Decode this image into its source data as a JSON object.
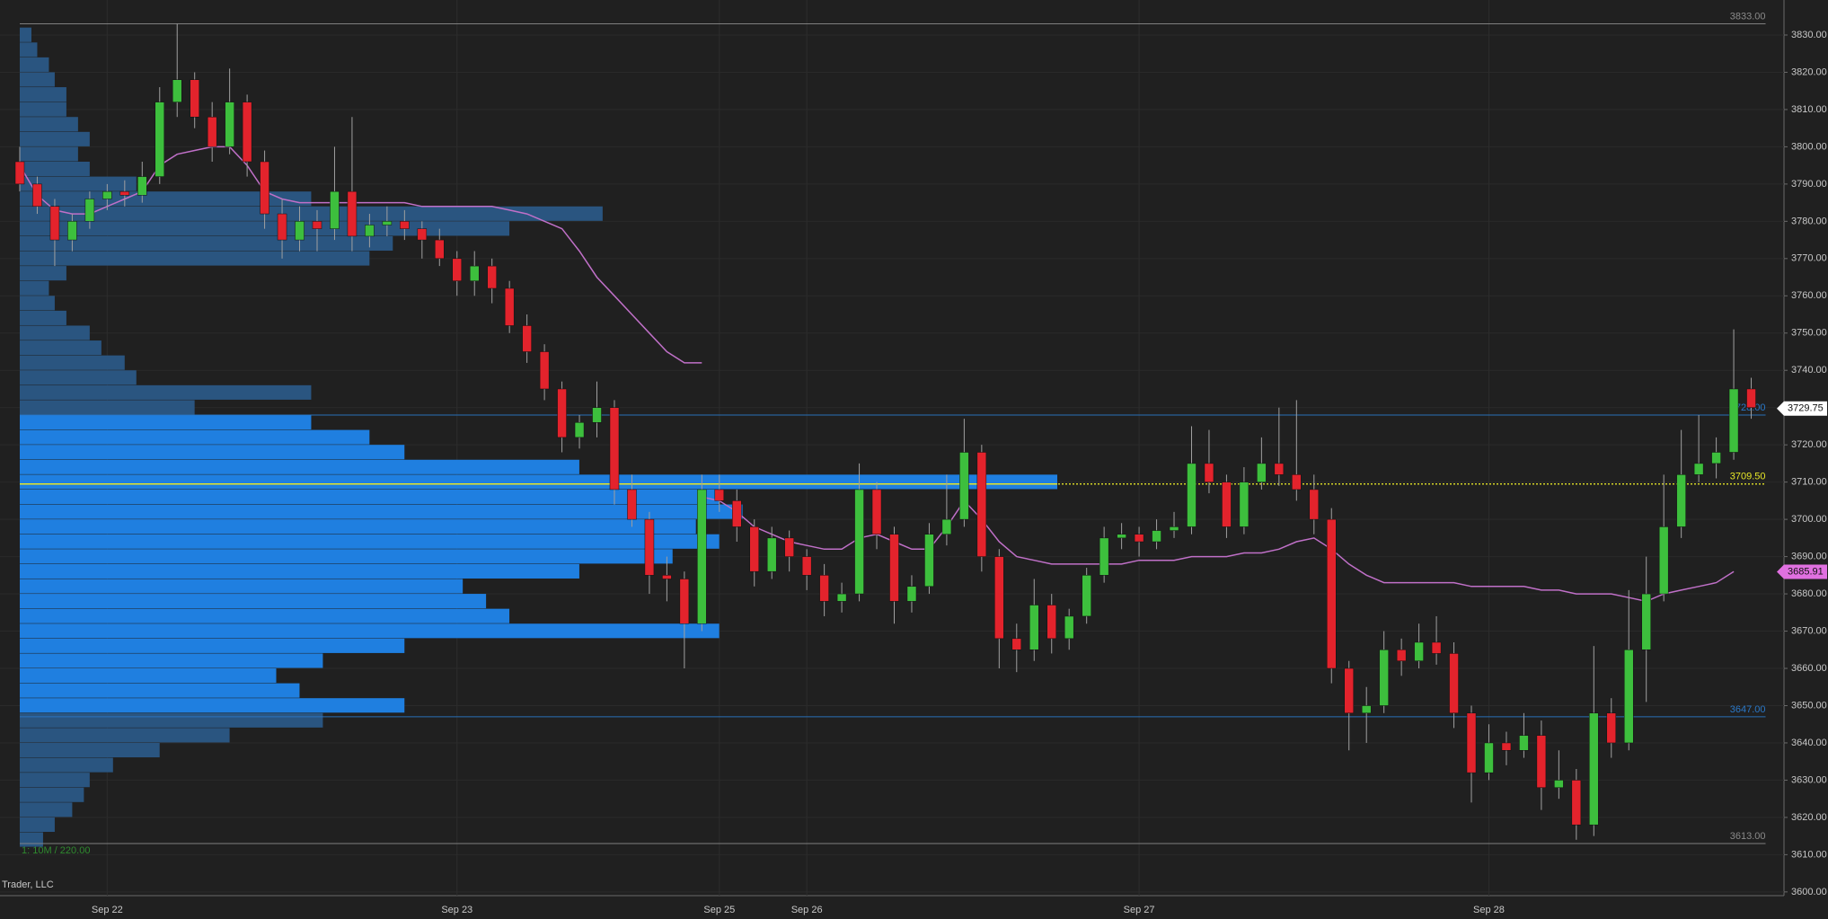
{
  "chart_data": {
    "type": "candlestick",
    "categories": [
      null,
      null,
      null,
      null,
      null,
      "Sep 22",
      null,
      null,
      null,
      null,
      null,
      null,
      null,
      null,
      null,
      null,
      null,
      null,
      null,
      null,
      null,
      null,
      null,
      null,
      null,
      "Sep 23",
      null,
      null,
      null,
      null,
      null,
      null,
      null,
      null,
      null,
      null,
      null,
      null,
      null,
      null,
      "Sep 25",
      null,
      null,
      null,
      null,
      "Sep 26",
      null,
      null,
      null,
      null,
      null,
      null,
      null,
      null,
      null,
      null,
      null,
      null,
      null,
      null,
      null,
      null,
      null,
      null,
      "Sep 27",
      null,
      null,
      null,
      null,
      null,
      null,
      null,
      null,
      null,
      null,
      null,
      null,
      null,
      null,
      null,
      null,
      null,
      null,
      null,
      "Sep 28",
      null,
      null,
      null,
      null,
      null,
      null,
      null,
      null,
      null,
      null,
      null,
      null,
      null,
      null,
      null
    ],
    "ohlc": [
      [
        3796,
        3800,
        3788,
        3790
      ],
      [
        3790,
        3792,
        3782,
        3784
      ],
      [
        3784,
        3786,
        3768,
        3775
      ],
      [
        3775,
        3782,
        3772,
        3780
      ],
      [
        3780,
        3788,
        3778,
        3786
      ],
      [
        3786,
        3790,
        3783,
        3788
      ],
      [
        3788,
        3791,
        3784,
        3787
      ],
      [
        3787,
        3796,
        3785,
        3792
      ],
      [
        3792,
        3816,
        3790,
        3812
      ],
      [
        3812,
        3833,
        3808,
        3818
      ],
      [
        3818,
        3820,
        3805,
        3808
      ],
      [
        3808,
        3812,
        3796,
        3800
      ],
      [
        3800,
        3821,
        3798,
        3812
      ],
      [
        3812,
        3814,
        3792,
        3796
      ],
      [
        3796,
        3799,
        3778,
        3782
      ],
      [
        3782,
        3786,
        3770,
        3775
      ],
      [
        3775,
        3784,
        3772,
        3780
      ],
      [
        3780,
        3783,
        3772,
        3778
      ],
      [
        3778,
        3800,
        3775,
        3788
      ],
      [
        3788,
        3808,
        3772,
        3776
      ],
      [
        3776,
        3782,
        3773,
        3779
      ],
      [
        3779,
        3784,
        3776,
        3780
      ],
      [
        3780,
        3783,
        3775,
        3778
      ],
      [
        3778,
        3780,
        3770,
        3775
      ],
      [
        3775,
        3778,
        3768,
        3770
      ],
      [
        3770,
        3772,
        3760,
        3764
      ],
      [
        3764,
        3772,
        3760,
        3768
      ],
      [
        3768,
        3770,
        3758,
        3762
      ],
      [
        3762,
        3764,
        3750,
        3752
      ],
      [
        3752,
        3755,
        3742,
        3745
      ],
      [
        3745,
        3747,
        3732,
        3735
      ],
      [
        3735,
        3737,
        3718,
        3722
      ],
      [
        3722,
        3728,
        3719,
        3726
      ],
      [
        3726,
        3737,
        3722,
        3730
      ],
      [
        3730,
        3732,
        3704,
        3708
      ],
      [
        3708,
        3712,
        3698,
        3700
      ],
      [
        3700,
        3702,
        3680,
        3685
      ],
      [
        3685,
        3690,
        3678,
        3684
      ],
      [
        3684,
        3686,
        3660,
        3672
      ],
      [
        3672,
        3712,
        3670,
        3708
      ],
      [
        3708,
        3712,
        3702,
        3705
      ],
      [
        3705,
        3708,
        3694,
        3698
      ],
      [
        3698,
        3700,
        3682,
        3686
      ],
      [
        3686,
        3698,
        3684,
        3695
      ],
      [
        3695,
        3697,
        3686,
        3690
      ],
      [
        3690,
        3692,
        3681,
        3685
      ],
      [
        3685,
        3688,
        3674,
        3678
      ],
      [
        3678,
        3683,
        3675,
        3680
      ],
      [
        3680,
        3715,
        3678,
        3708
      ],
      [
        3708,
        3710,
        3692,
        3696
      ],
      [
        3696,
        3698,
        3672,
        3678
      ],
      [
        3678,
        3685,
        3675,
        3682
      ],
      [
        3682,
        3699,
        3680,
        3696
      ],
      [
        3696,
        3712,
        3693,
        3700
      ],
      [
        3700,
        3727,
        3698,
        3718
      ],
      [
        3718,
        3720,
        3686,
        3690
      ],
      [
        3690,
        3692,
        3660,
        3668
      ],
      [
        3668,
        3672,
        3659,
        3665
      ],
      [
        3665,
        3684,
        3662,
        3677
      ],
      [
        3677,
        3680,
        3664,
        3668
      ],
      [
        3668,
        3676,
        3665,
        3674
      ],
      [
        3674,
        3687,
        3672,
        3685
      ],
      [
        3685,
        3698,
        3683,
        3695
      ],
      [
        3695,
        3699,
        3692,
        3696
      ],
      [
        3696,
        3698,
        3690,
        3694
      ],
      [
        3694,
        3700,
        3692,
        3697
      ],
      [
        3697,
        3702,
        3695,
        3698
      ],
      [
        3698,
        3725,
        3696,
        3715
      ],
      [
        3715,
        3724,
        3707,
        3710
      ],
      [
        3710,
        3712,
        3695,
        3698
      ],
      [
        3698,
        3714,
        3696,
        3710
      ],
      [
        3710,
        3722,
        3708,
        3715
      ],
      [
        3715,
        3730,
        3709,
        3712
      ],
      [
        3712,
        3732,
        3705,
        3708
      ],
      [
        3708,
        3712,
        3696,
        3700
      ],
      [
        3700,
        3703,
        3656,
        3660
      ],
      [
        3660,
        3662,
        3638,
        3648
      ],
      [
        3648,
        3655,
        3640,
        3650
      ],
      [
        3650,
        3670,
        3648,
        3665
      ],
      [
        3665,
        3668,
        3658,
        3662
      ],
      [
        3662,
        3672,
        3660,
        3667
      ],
      [
        3667,
        3674,
        3661,
        3664
      ],
      [
        3664,
        3667,
        3644,
        3648
      ],
      [
        3648,
        3650,
        3624,
        3632
      ],
      [
        3632,
        3645,
        3630,
        3640
      ],
      [
        3640,
        3643,
        3634,
        3638
      ],
      [
        3638,
        3648,
        3636,
        3642
      ],
      [
        3642,
        3646,
        3622,
        3628
      ],
      [
        3628,
        3638,
        3625,
        3630
      ],
      [
        3630,
        3633,
        3614,
        3618
      ],
      [
        3618,
        3666,
        3615,
        3648
      ],
      [
        3648,
        3652,
        3636,
        3640
      ],
      [
        3640,
        3681,
        3638,
        3665
      ],
      [
        3665,
        3690,
        3651,
        3680
      ],
      [
        3680,
        3712,
        3678,
        3698
      ],
      [
        3698,
        3724,
        3695,
        3712
      ],
      [
        3712,
        3728,
        3710,
        3715
      ],
      [
        3715,
        3722,
        3711,
        3718
      ],
      [
        3718,
        3751,
        3716,
        3735
      ],
      [
        3735,
        3738,
        3727,
        3730
      ]
    ],
    "up_color": "#3dbf3d",
    "down_color": "#e3232c",
    "wick_color": "#a0a0a0",
    "series": [
      {
        "color": "#c070c8",
        "values": [
          3795,
          3787,
          3783,
          3782,
          3782,
          3784,
          3786,
          3788,
          3795,
          3798,
          3799,
          3800,
          3800,
          3795,
          3788,
          3786,
          3785,
          3785,
          3785,
          3785,
          3785,
          3785,
          3785,
          3784,
          3784,
          3784,
          3784,
          3784,
          3783,
          3782,
          3780,
          3778,
          3772,
          3765,
          3760,
          3755,
          3750,
          3745,
          3742,
          3742,
          null,
          null,
          null,
          null,
          null,
          null,
          null,
          null,
          null,
          null,
          null,
          null,
          null,
          null,
          null,
          null,
          null,
          null,
          null,
          null,
          null,
          null,
          null,
          null,
          null,
          null,
          null,
          null,
          null,
          null,
          null,
          null,
          null,
          null,
          null,
          null,
          null,
          null,
          null,
          null,
          null,
          null,
          null,
          null,
          null,
          null,
          null,
          null,
          null,
          null,
          null,
          null,
          null,
          null,
          null,
          null,
          null,
          null,
          null,
          null
        ]
      },
      {
        "color": "#c070c8",
        "values": [
          null,
          null,
          null,
          null,
          null,
          null,
          null,
          null,
          null,
          null,
          null,
          null,
          null,
          null,
          null,
          null,
          null,
          null,
          null,
          null,
          null,
          null,
          null,
          null,
          null,
          null,
          null,
          null,
          null,
          null,
          null,
          null,
          null,
          null,
          null,
          null,
          null,
          null,
          null,
          3706,
          3705,
          3702,
          3698,
          3696,
          3694,
          3693,
          3692,
          3692,
          3695,
          3696,
          3694,
          3692,
          3692,
          3698,
          3705,
          3700,
          3694,
          3690,
          3689,
          3688,
          3688,
          3688,
          3688,
          3688,
          3689,
          3689,
          3689,
          3690,
          3690,
          3690,
          3691,
          3691,
          3692,
          3694,
          3695,
          3692,
          3688,
          3685,
          3683,
          3683,
          3683,
          3683,
          3683,
          3682,
          3682,
          3682,
          3682,
          3681,
          3681,
          3680,
          3680,
          3680,
          3679,
          3678,
          3680,
          3681,
          3682,
          3683,
          3686,
          null
        ]
      }
    ],
    "volume_profile": {
      "prices": [
        3612,
        3616,
        3620,
        3624,
        3628,
        3632,
        3636,
        3640,
        3644,
        3648,
        3652,
        3656,
        3660,
        3664,
        3668,
        3672,
        3676,
        3680,
        3684,
        3688,
        3692,
        3696,
        3700,
        3704,
        3708,
        3712,
        3716,
        3720,
        3724,
        3728,
        3732,
        3736,
        3740,
        3744,
        3748,
        3752,
        3756,
        3760,
        3764,
        3768,
        3772,
        3776,
        3780,
        3784,
        3788,
        3792,
        3796,
        3800,
        3804,
        3808,
        3812,
        3816,
        3820,
        3824,
        3828
      ],
      "bin_size": 4,
      "values": [
        20,
        30,
        45,
        55,
        60,
        80,
        120,
        180,
        260,
        330,
        240,
        220,
        260,
        330,
        600,
        420,
        400,
        380,
        480,
        560,
        600,
        580,
        620,
        600,
        890,
        480,
        330,
        300,
        250,
        150,
        250,
        100,
        90,
        70,
        60,
        40,
        30,
        25,
        40,
        300,
        320,
        420,
        500,
        250,
        100,
        60,
        50,
        60,
        50,
        40,
        40,
        30,
        25,
        15,
        10
      ],
      "inside_color": "#1f7fe0",
      "outside_color": "#2a5580"
    },
    "levels": [
      {
        "value": 3833,
        "label": "3833.00",
        "color": "#8a8a8a",
        "kind": "high"
      },
      {
        "value": 3728,
        "label": "3728.00",
        "color": "#2a78c8",
        "kind": "value-area-high"
      },
      {
        "value": 3709.5,
        "label": "3709.50",
        "color": "#e6e628",
        "kind": "poc"
      },
      {
        "value": 3647,
        "label": "3647.00",
        "color": "#2a78c8",
        "kind": "value-area-low"
      },
      {
        "value": 3613,
        "label": "3613.00",
        "color": "#8a8a8a",
        "kind": "low"
      }
    ],
    "price_markers": [
      {
        "value": 3729.75,
        "color": "#ffffff"
      },
      {
        "value": 3685.91,
        "color": "#e070e0"
      }
    ],
    "ylim": [
      3599,
      3839.4
    ],
    "yticks": [
      {
        "value": 3600,
        "label": "3600.00"
      },
      {
        "value": 3610,
        "label": "3610.00"
      },
      {
        "value": 3620,
        "label": "3620.00"
      },
      {
        "value": 3630,
        "label": "3630.00"
      },
      {
        "value": 3640,
        "label": "3640.00"
      },
      {
        "value": 3650,
        "label": "3650.00"
      },
      {
        "value": 3660,
        "label": "3660.00"
      },
      {
        "value": 3670,
        "label": "3670.00"
      },
      {
        "value": 3680,
        "label": "3680.00"
      },
      {
        "value": 3690,
        "label": "3690.00"
      },
      {
        "value": 3700,
        "label": "3700.00"
      },
      {
        "value": 3710,
        "label": "3710.00"
      },
      {
        "value": 3720,
        "label": "3720.00"
      },
      {
        "value": 3730,
        "label": "3730.00"
      },
      {
        "value": 3740,
        "label": "3740.00"
      },
      {
        "value": 3750,
        "label": "3750.00"
      },
      {
        "value": 3760,
        "label": "3760.00"
      },
      {
        "value": 3770,
        "label": "3770.00"
      },
      {
        "value": 3780,
        "label": "3780.00"
      },
      {
        "value": 3790,
        "label": "3790.00"
      },
      {
        "value": 3800,
        "label": "3800.00"
      },
      {
        "value": 3810,
        "label": "3810.00"
      },
      {
        "value": 3820,
        "label": "3820.00"
      },
      {
        "value": 3830,
        "label": "3830.00"
      }
    ],
    "grid": true,
    "profile_caption": "1: 10M / 220.00",
    "watermark": "Trader, LLC"
  }
}
